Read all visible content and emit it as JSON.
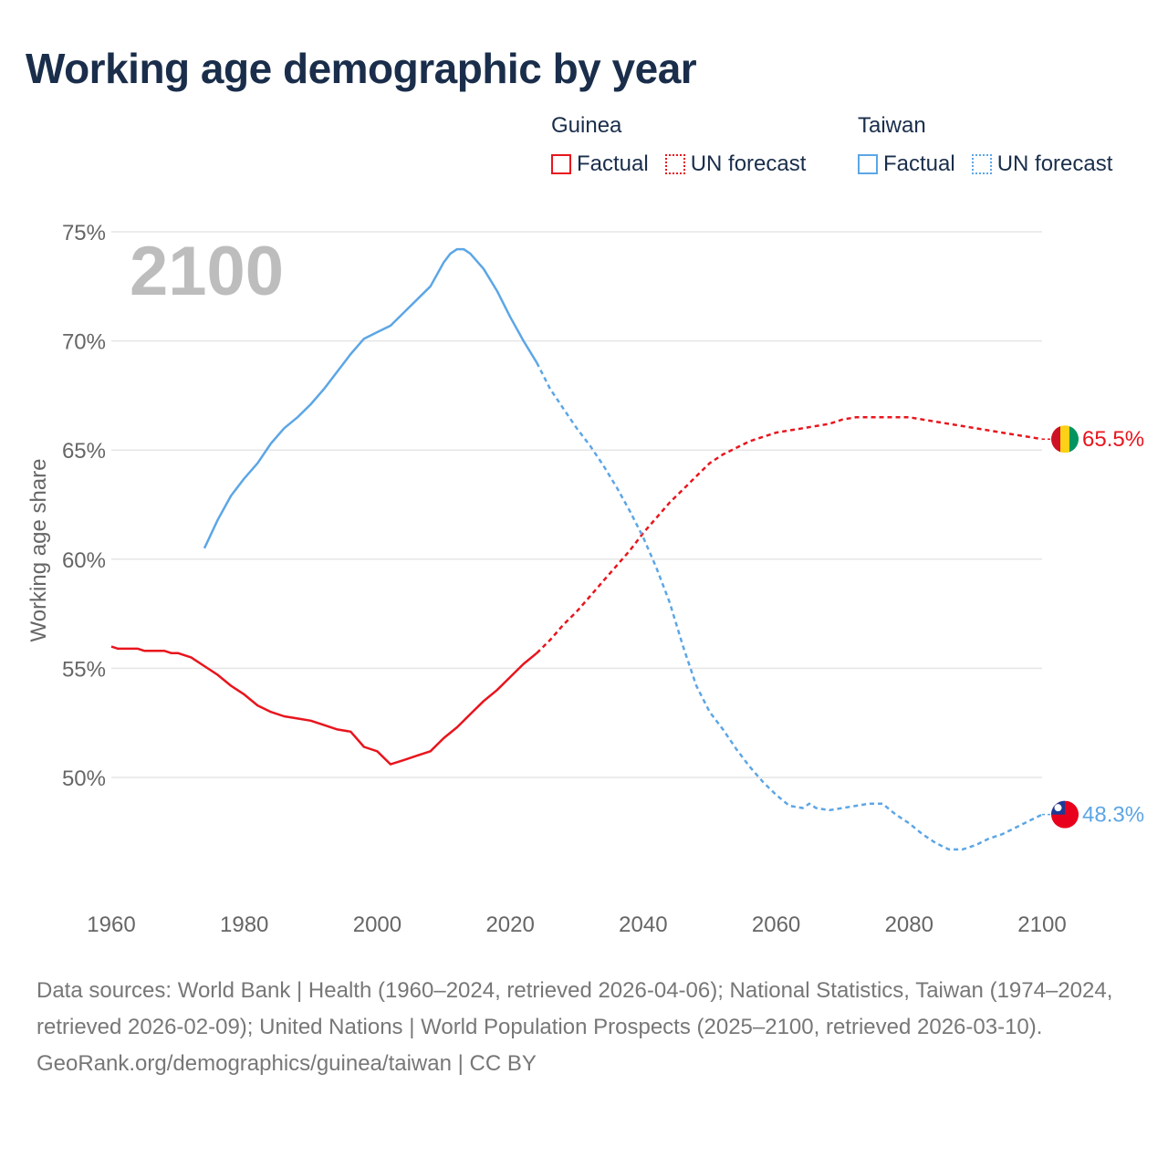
{
  "title": "Working age demographic by year",
  "legend": {
    "groups": [
      {
        "name": "Guinea",
        "color": "#e8151d",
        "factual_label": "Factual",
        "forecast_label": "UN forecast"
      },
      {
        "name": "Taiwan",
        "color": "#5ca6e6",
        "factual_label": "Factual",
        "forecast_label": "UN forecast"
      }
    ]
  },
  "chart_data": {
    "type": "line",
    "title": "Working age demographic by year",
    "xlabel": "",
    "ylabel": "Working age share",
    "year_label": "2100",
    "xlim": [
      1960,
      2100
    ],
    "ylim": [
      44.5,
      76
    ],
    "x_ticks": [
      1960,
      1980,
      2000,
      2020,
      2040,
      2060,
      2080,
      2100
    ],
    "y_ticks": [
      50,
      55,
      60,
      65,
      70,
      75
    ],
    "y_tick_labels": [
      "50%",
      "55%",
      "60%",
      "65%",
      "70%",
      "75%"
    ],
    "grid": true,
    "series": [
      {
        "name": "Guinea",
        "color": "#e8151d",
        "end_label": "65.5%",
        "factual": [
          [
            1960,
            56.0
          ],
          [
            1961,
            55.9
          ],
          [
            1964,
            55.9
          ],
          [
            1965,
            55.8
          ],
          [
            1968,
            55.8
          ],
          [
            1969,
            55.7
          ],
          [
            1970,
            55.7
          ],
          [
            1972,
            55.5
          ],
          [
            1974,
            55.1
          ],
          [
            1976,
            54.7
          ],
          [
            1978,
            54.2
          ],
          [
            1980,
            53.8
          ],
          [
            1982,
            53.3
          ],
          [
            1984,
            53.0
          ],
          [
            1986,
            52.8
          ],
          [
            1988,
            52.7
          ],
          [
            1990,
            52.6
          ],
          [
            1992,
            52.4
          ],
          [
            1994,
            52.2
          ],
          [
            1996,
            52.1
          ],
          [
            1998,
            51.4
          ],
          [
            2000,
            51.2
          ],
          [
            2002,
            50.6
          ],
          [
            2004,
            50.8
          ],
          [
            2006,
            51.0
          ],
          [
            2008,
            51.2
          ],
          [
            2010,
            51.8
          ],
          [
            2012,
            52.3
          ],
          [
            2014,
            52.9
          ],
          [
            2016,
            53.5
          ],
          [
            2018,
            54.0
          ],
          [
            2020,
            54.6
          ],
          [
            2022,
            55.2
          ],
          [
            2024,
            55.7
          ]
        ],
        "forecast": [
          [
            2024,
            55.7
          ],
          [
            2026,
            56.3
          ],
          [
            2028,
            57.0
          ],
          [
            2030,
            57.6
          ],
          [
            2032,
            58.3
          ],
          [
            2034,
            59.0
          ],
          [
            2036,
            59.7
          ],
          [
            2038,
            60.4
          ],
          [
            2040,
            61.2
          ],
          [
            2042,
            61.9
          ],
          [
            2044,
            62.6
          ],
          [
            2046,
            63.2
          ],
          [
            2048,
            63.8
          ],
          [
            2050,
            64.4
          ],
          [
            2052,
            64.8
          ],
          [
            2054,
            65.1
          ],
          [
            2056,
            65.4
          ],
          [
            2058,
            65.6
          ],
          [
            2060,
            65.8
          ],
          [
            2062,
            65.9
          ],
          [
            2064,
            66.0
          ],
          [
            2066,
            66.1
          ],
          [
            2068,
            66.2
          ],
          [
            2070,
            66.4
          ],
          [
            2072,
            66.5
          ],
          [
            2074,
            66.5
          ],
          [
            2078,
            66.5
          ],
          [
            2080,
            66.5
          ],
          [
            2082,
            66.4
          ],
          [
            2084,
            66.3
          ],
          [
            2086,
            66.2
          ],
          [
            2088,
            66.1
          ],
          [
            2090,
            66.0
          ],
          [
            2092,
            65.9
          ],
          [
            2094,
            65.8
          ],
          [
            2096,
            65.7
          ],
          [
            2098,
            65.6
          ],
          [
            2100,
            65.5
          ]
        ]
      },
      {
        "name": "Taiwan",
        "color": "#5ca6e6",
        "end_label": "48.3%",
        "factual": [
          [
            1974,
            60.5
          ],
          [
            1976,
            61.8
          ],
          [
            1978,
            62.9
          ],
          [
            1980,
            63.7
          ],
          [
            1982,
            64.4
          ],
          [
            1984,
            65.3
          ],
          [
            1986,
            66.0
          ],
          [
            1988,
            66.5
          ],
          [
            1990,
            67.1
          ],
          [
            1992,
            67.8
          ],
          [
            1994,
            68.6
          ],
          [
            1996,
            69.4
          ],
          [
            1998,
            70.1
          ],
          [
            2000,
            70.4
          ],
          [
            2002,
            70.7
          ],
          [
            2004,
            71.3
          ],
          [
            2006,
            71.9
          ],
          [
            2008,
            72.5
          ],
          [
            2010,
            73.6
          ],
          [
            2011,
            74.0
          ],
          [
            2012,
            74.2
          ],
          [
            2013,
            74.2
          ],
          [
            2014,
            74.0
          ],
          [
            2016,
            73.3
          ],
          [
            2018,
            72.3
          ],
          [
            2020,
            71.1
          ],
          [
            2022,
            70.0
          ],
          [
            2024,
            69.0
          ]
        ],
        "forecast": [
          [
            2024,
            69.0
          ],
          [
            2026,
            67.8
          ],
          [
            2028,
            66.9
          ],
          [
            2030,
            66.0
          ],
          [
            2032,
            65.2
          ],
          [
            2034,
            64.3
          ],
          [
            2036,
            63.3
          ],
          [
            2038,
            62.2
          ],
          [
            2040,
            61.0
          ],
          [
            2042,
            59.6
          ],
          [
            2044,
            58.0
          ],
          [
            2046,
            56.0
          ],
          [
            2048,
            54.2
          ],
          [
            2050,
            53.0
          ],
          [
            2052,
            52.2
          ],
          [
            2054,
            51.3
          ],
          [
            2056,
            50.5
          ],
          [
            2058,
            49.8
          ],
          [
            2060,
            49.2
          ],
          [
            2062,
            48.7
          ],
          [
            2064,
            48.6
          ],
          [
            2065,
            48.8
          ],
          [
            2066,
            48.6
          ],
          [
            2068,
            48.5
          ],
          [
            2070,
            48.6
          ],
          [
            2072,
            48.7
          ],
          [
            2074,
            48.8
          ],
          [
            2076,
            48.8
          ],
          [
            2078,
            48.3
          ],
          [
            2080,
            47.9
          ],
          [
            2082,
            47.4
          ],
          [
            2084,
            47.0
          ],
          [
            2086,
            46.7
          ],
          [
            2088,
            46.7
          ],
          [
            2090,
            46.9
          ],
          [
            2092,
            47.2
          ],
          [
            2094,
            47.4
          ],
          [
            2096,
            47.7
          ],
          [
            2098,
            48.0
          ],
          [
            2100,
            48.3
          ]
        ]
      }
    ]
  },
  "footer": {
    "sources": "Data sources: World Bank | Health (1960–2024, retrieved 2026-04-06); National Statistics, Taiwan (1974–2024, retrieved 2026-02-09); United Nations | World Population Prospects (2025–2100, retrieved 2026-03-10).",
    "attribution": "GeoRank.org/demographics/guinea/taiwan | CC BY"
  }
}
